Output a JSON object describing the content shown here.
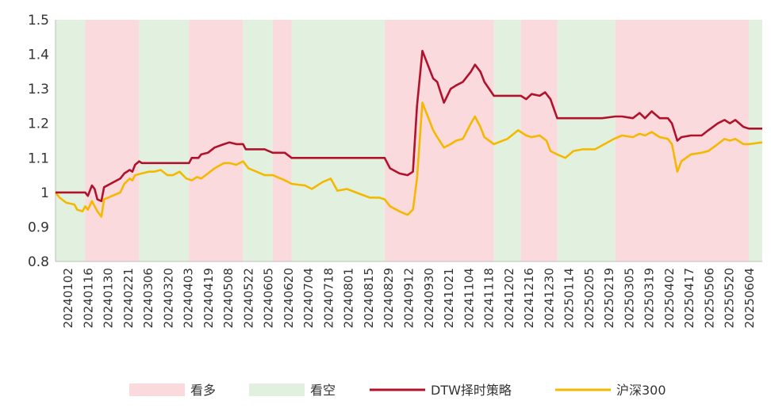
{
  "chart_data": {
    "type": "line",
    "title": "",
    "xlabel": "",
    "ylabel": "",
    "ylim": [
      0.8,
      1.5
    ],
    "yticks": [
      "0.8",
      "0.9",
      "1",
      "1.1",
      "1.2",
      "1.3",
      "1.4",
      "1.5"
    ],
    "xticks": [
      "20240102",
      "20240116",
      "20240130",
      "20240221",
      "20240306",
      "20240320",
      "20240403",
      "20240419",
      "20240508",
      "20240522",
      "20240605",
      "20240620",
      "20240704",
      "20240718",
      "20240801",
      "20240815",
      "20240829",
      "20240912",
      "20240930",
      "20241021",
      "20241104",
      "20241118",
      "20241202",
      "20241216",
      "20241230",
      "20250114",
      "20250205",
      "20250219",
      "20250305",
      "20250319",
      "20250402",
      "20250417",
      "20250506",
      "20250520",
      "20250604"
    ],
    "legend_position": "bottom",
    "legend": [
      {
        "label": "看多",
        "kind": "band",
        "color": "#FADADD"
      },
      {
        "label": "看空",
        "kind": "band",
        "color": "#E2F1DF"
      },
      {
        "label": "DTW择时策略",
        "kind": "line",
        "color": "#B0122B"
      },
      {
        "label": "沪深300",
        "kind": "line",
        "color": "#F5B800"
      }
    ],
    "regions": [
      {
        "start": "20240102",
        "end": "20240124",
        "signal": "看空"
      },
      {
        "start": "20240124",
        "end": "20240304",
        "signal": "看多"
      },
      {
        "start": "20240304",
        "end": "20240410",
        "signal": "看空"
      },
      {
        "start": "20240410",
        "end": "20240520",
        "signal": "看多"
      },
      {
        "start": "20240520",
        "end": "20240611",
        "signal": "看空"
      },
      {
        "start": "20240611",
        "end": "20240625",
        "signal": "看多"
      },
      {
        "start": "20240625",
        "end": "20240902",
        "signal": "看空"
      },
      {
        "start": "20240902",
        "end": "20241122",
        "signal": "看多"
      },
      {
        "start": "20241122",
        "end": "20241212",
        "signal": "看空"
      },
      {
        "start": "20241212",
        "end": "20250108",
        "signal": "看多"
      },
      {
        "start": "20250108",
        "end": "20250220",
        "signal": "看空"
      },
      {
        "start": "20250220",
        "end": "20250530",
        "signal": "看多"
      },
      {
        "start": "20250530",
        "end": "20250609",
        "signal": "看空"
      }
    ],
    "series": [
      {
        "name": "DTW择时策略",
        "color": "#B0122B",
        "points": [
          [
            "20240102",
            1.0
          ],
          [
            "20240110",
            1.0
          ],
          [
            "20240118",
            1.0
          ],
          [
            "20240124",
            1.0
          ],
          [
            "20240126",
            0.99
          ],
          [
            "20240129",
            1.02
          ],
          [
            "20240131",
            1.01
          ],
          [
            "20240202",
            0.98
          ],
          [
            "20240205",
            0.975
          ],
          [
            "20240207",
            1.015
          ],
          [
            "20240219",
            1.04
          ],
          [
            "20240222",
            1.055
          ],
          [
            "20240226",
            1.065
          ],
          [
            "20240228",
            1.06
          ],
          [
            "20240301",
            1.08
          ],
          [
            "20240304",
            1.09
          ],
          [
            "20240306",
            1.085
          ],
          [
            "20240315",
            1.085
          ],
          [
            "20240325",
            1.085
          ],
          [
            "20240405",
            1.085
          ],
          [
            "20240410",
            1.085
          ],
          [
            "20240412",
            1.1
          ],
          [
            "20240417",
            1.1
          ],
          [
            "20240419",
            1.11
          ],
          [
            "20240424",
            1.115
          ],
          [
            "20240429",
            1.13
          ],
          [
            "20240506",
            1.14
          ],
          [
            "20240510",
            1.145
          ],
          [
            "20240515",
            1.14
          ],
          [
            "20240520",
            1.14
          ],
          [
            "20240522",
            1.125
          ],
          [
            "20240605",
            1.125
          ],
          [
            "20240611",
            1.115
          ],
          [
            "20240620",
            1.115
          ],
          [
            "20240625",
            1.1
          ],
          [
            "20240705",
            1.1
          ],
          [
            "20240720",
            1.1
          ],
          [
            "20240801",
            1.1
          ],
          [
            "20240815",
            1.1
          ],
          [
            "20240902",
            1.1
          ],
          [
            "20240906",
            1.07
          ],
          [
            "20240913",
            1.055
          ],
          [
            "20240919",
            1.05
          ],
          [
            "20240923",
            1.06
          ],
          [
            "20240926",
            1.25
          ],
          [
            "20240930",
            1.41
          ],
          [
            "20241008",
            1.33
          ],
          [
            "20241011",
            1.32
          ],
          [
            "20241016",
            1.26
          ],
          [
            "20241021",
            1.3
          ],
          [
            "20241025",
            1.31
          ],
          [
            "20241030",
            1.32
          ],
          [
            "20241105",
            1.35
          ],
          [
            "20241108",
            1.37
          ],
          [
            "20241112",
            1.35
          ],
          [
            "20241115",
            1.32
          ],
          [
            "20241122",
            1.28
          ],
          [
            "20241202",
            1.28
          ],
          [
            "20241212",
            1.28
          ],
          [
            "20241216",
            1.27
          ],
          [
            "20241220",
            1.285
          ],
          [
            "20241226",
            1.28
          ],
          [
            "20241230",
            1.29
          ],
          [
            "20250103",
            1.27
          ],
          [
            "20250108",
            1.215
          ],
          [
            "20250120",
            1.215
          ],
          [
            "20250210",
            1.215
          ],
          [
            "20250220",
            1.22
          ],
          [
            "20250225",
            1.22
          ],
          [
            "20250305",
            1.215
          ],
          [
            "20250310",
            1.23
          ],
          [
            "20250314",
            1.215
          ],
          [
            "20250319",
            1.235
          ],
          [
            "20250325",
            1.215
          ],
          [
            "20250331",
            1.215
          ],
          [
            "20250403",
            1.2
          ],
          [
            "20250407",
            1.15
          ],
          [
            "20250410",
            1.16
          ],
          [
            "20250417",
            1.165
          ],
          [
            "20250425",
            1.165
          ],
          [
            "20250430",
            1.18
          ],
          [
            "20250507",
            1.2
          ],
          [
            "20250512",
            1.21
          ],
          [
            "20250516",
            1.2
          ],
          [
            "20250520",
            1.21
          ],
          [
            "20250526",
            1.19
          ],
          [
            "20250530",
            1.185
          ],
          [
            "20250609",
            1.185
          ]
        ]
      },
      {
        "name": "沪深300",
        "color": "#F5B800",
        "points": [
          [
            "20240102",
            1.0
          ],
          [
            "20240105",
            0.985
          ],
          [
            "20240110",
            0.97
          ],
          [
            "20240116",
            0.965
          ],
          [
            "20240118",
            0.95
          ],
          [
            "20240122",
            0.945
          ],
          [
            "20240124",
            0.96
          ],
          [
            "20240126",
            0.95
          ],
          [
            "20240129",
            0.975
          ],
          [
            "20240131",
            0.96
          ],
          [
            "20240202",
            0.945
          ],
          [
            "20240205",
            0.93
          ],
          [
            "20240207",
            0.98
          ],
          [
            "20240219",
            1.0
          ],
          [
            "20240222",
            1.025
          ],
          [
            "20240226",
            1.04
          ],
          [
            "20240228",
            1.035
          ],
          [
            "20240301",
            1.05
          ],
          [
            "20240306",
            1.055
          ],
          [
            "20240311",
            1.06
          ],
          [
            "20240315",
            1.06
          ],
          [
            "20240320",
            1.065
          ],
          [
            "20240325",
            1.05
          ],
          [
            "20240329",
            1.05
          ],
          [
            "20240403",
            1.06
          ],
          [
            "20240408",
            1.04
          ],
          [
            "20240412",
            1.035
          ],
          [
            "20240416",
            1.045
          ],
          [
            "20240419",
            1.04
          ],
          [
            "20240424",
            1.055
          ],
          [
            "20240429",
            1.07
          ],
          [
            "20240506",
            1.085
          ],
          [
            "20240510",
            1.085
          ],
          [
            "20240515",
            1.08
          ],
          [
            "20240520",
            1.09
          ],
          [
            "20240524",
            1.07
          ],
          [
            "20240530",
            1.06
          ],
          [
            "20240605",
            1.05
          ],
          [
            "20240611",
            1.05
          ],
          [
            "20240620",
            1.035
          ],
          [
            "20240625",
            1.025
          ],
          [
            "20240705",
            1.02
          ],
          [
            "20240710",
            1.01
          ],
          [
            "20240718",
            1.03
          ],
          [
            "20240724",
            1.04
          ],
          [
            "20240729",
            1.005
          ],
          [
            "20240805",
            1.01
          ],
          [
            "20240815",
            0.995
          ],
          [
            "20240822",
            0.985
          ],
          [
            "20240829",
            0.985
          ],
          [
            "20240902",
            0.98
          ],
          [
            "20240906",
            0.96
          ],
          [
            "20240913",
            0.945
          ],
          [
            "20240919",
            0.935
          ],
          [
            "20240923",
            0.95
          ],
          [
            "20240926",
            1.04
          ],
          [
            "20240930",
            1.26
          ],
          [
            "20241008",
            1.18
          ],
          [
            "20241011",
            1.16
          ],
          [
            "20241016",
            1.13
          ],
          [
            "20241021",
            1.14
          ],
          [
            "20241025",
            1.15
          ],
          [
            "20241030",
            1.155
          ],
          [
            "20241105",
            1.2
          ],
          [
            "20241108",
            1.22
          ],
          [
            "20241112",
            1.19
          ],
          [
            "20241115",
            1.16
          ],
          [
            "20241122",
            1.14
          ],
          [
            "20241202",
            1.155
          ],
          [
            "20241210",
            1.18
          ],
          [
            "20241216",
            1.165
          ],
          [
            "20241220",
            1.16
          ],
          [
            "20241226",
            1.165
          ],
          [
            "20241231",
            1.15
          ],
          [
            "20250103",
            1.12
          ],
          [
            "20250108",
            1.11
          ],
          [
            "20250114",
            1.1
          ],
          [
            "20250120",
            1.12
          ],
          [
            "20250127",
            1.125
          ],
          [
            "20250205",
            1.125
          ],
          [
            "20250212",
            1.14
          ],
          [
            "20250219",
            1.155
          ],
          [
            "20250225",
            1.165
          ],
          [
            "20250305",
            1.16
          ],
          [
            "20250310",
            1.17
          ],
          [
            "20250314",
            1.165
          ],
          [
            "20250319",
            1.175
          ],
          [
            "20250325",
            1.16
          ],
          [
            "20250331",
            1.155
          ],
          [
            "20250403",
            1.14
          ],
          [
            "20250407",
            1.06
          ],
          [
            "20250410",
            1.09
          ],
          [
            "20250417",
            1.11
          ],
          [
            "20250425",
            1.115
          ],
          [
            "20250430",
            1.12
          ],
          [
            "20250507",
            1.14
          ],
          [
            "20250512",
            1.155
          ],
          [
            "20250516",
            1.15
          ],
          [
            "20250520",
            1.155
          ],
          [
            "20250526",
            1.14
          ],
          [
            "20250530",
            1.14
          ],
          [
            "20250609",
            1.145
          ]
        ]
      }
    ]
  }
}
